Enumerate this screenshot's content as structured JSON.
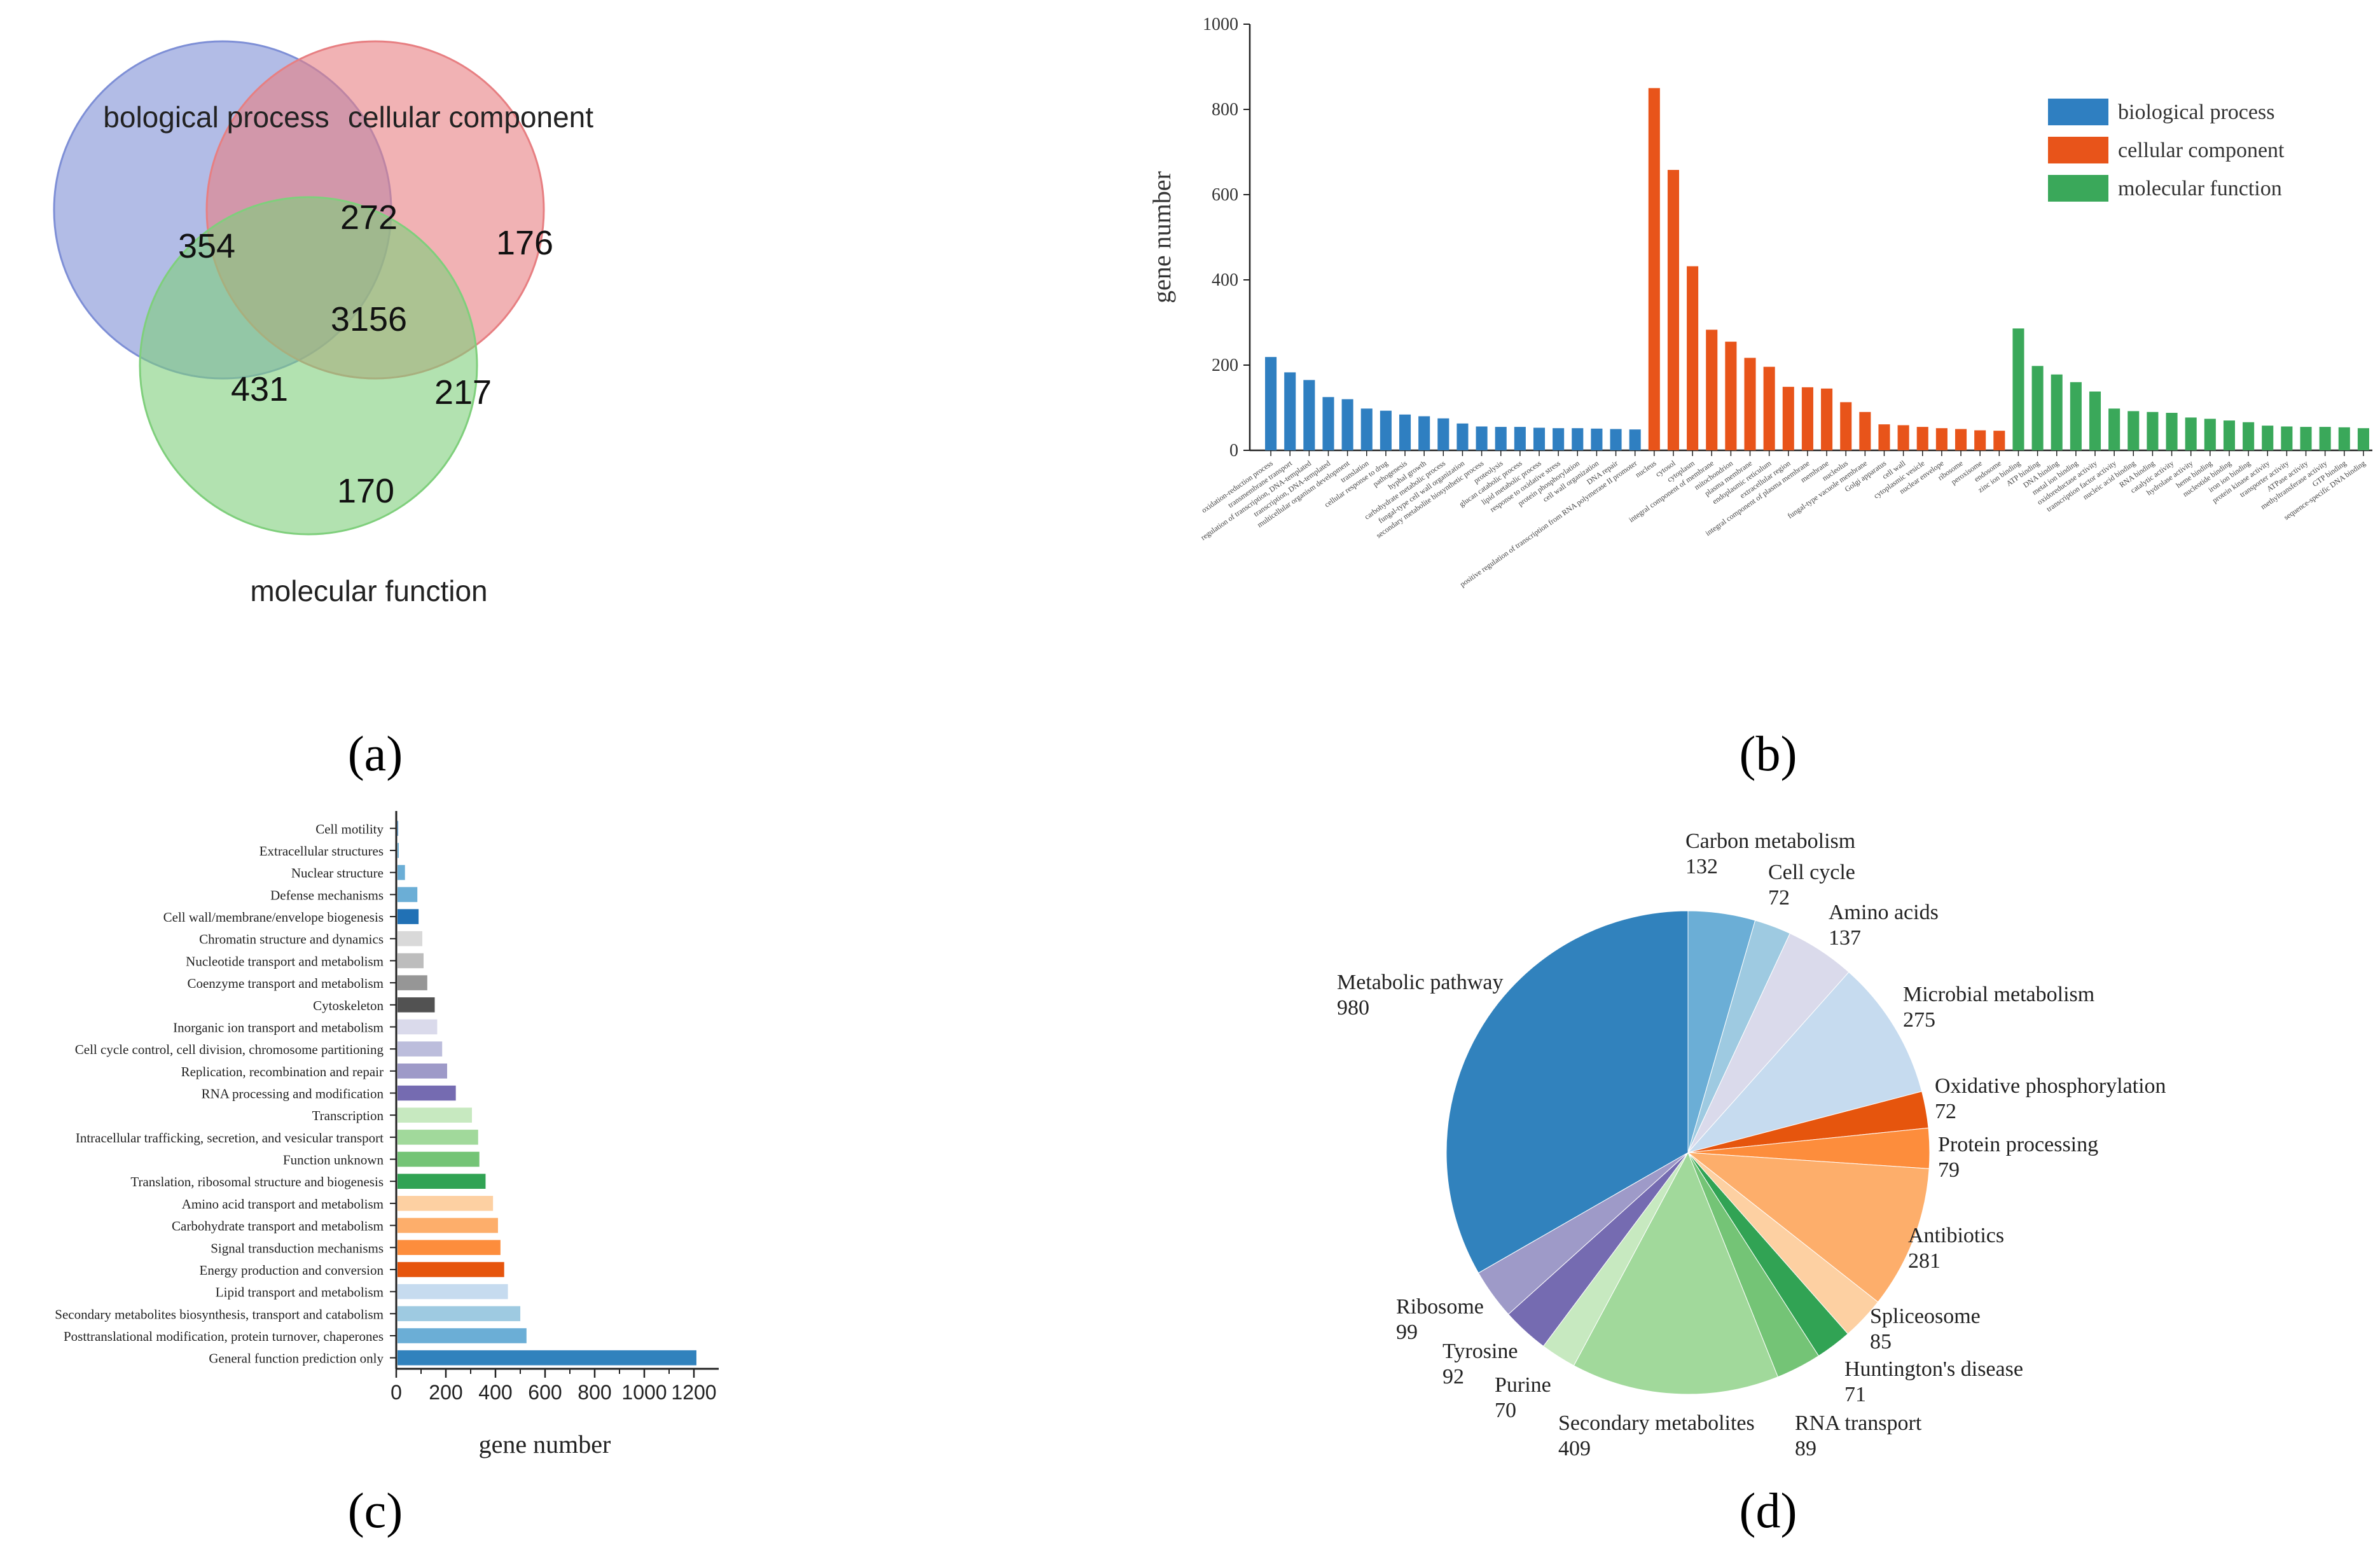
{
  "panel_labels": [
    "(a)",
    "(b)",
    "(c)",
    "(d)"
  ],
  "chart_data": [
    {
      "type": "venn",
      "id": "a",
      "sets": [
        "bological process",
        "cellular component",
        "molecular function"
      ],
      "colors": [
        "#7e8fd6",
        "#e77f82",
        "#7fcf7c"
      ],
      "regions": {
        "bp_only": 354,
        "cc_only": 176,
        "mf_only": 170,
        "bp_cc": 272,
        "bp_mf": 431,
        "cc_mf": 217,
        "all": 3156
      }
    },
    {
      "type": "bar",
      "id": "b",
      "ylabel": "gene number",
      "ylim": [
        0,
        1000
      ],
      "yticks": [
        "0",
        "200",
        "400",
        "600",
        "800",
        "1000"
      ],
      "legend_position": "top-right",
      "series": [
        {
          "name": "biological process",
          "color": "#2f7fc1",
          "categories": [
            "oxidation-reduction process",
            "transmembrane transport",
            "regulation of transcription, DNA-templated",
            "transcription, DNA-templated",
            "multicellular organism development",
            "translation",
            "cellular response to drug",
            "pathogenesis",
            "hyphal growth",
            "carbohydrate metabolic process",
            "fungal-type cell wall organization",
            "secondary metabolite biosynthetic process",
            "proteolysis",
            "glucan catabolic process",
            "lipid metabolic process",
            "response to oxidative stress",
            "protein phosphorylation",
            "cell wall organization",
            "DNA repair",
            "positive regulation of transcription from RNA polymerase II promoter"
          ],
          "values": [
            219,
            183,
            165,
            125,
            120,
            98,
            93,
            84,
            80,
            75,
            63,
            56,
            55,
            55,
            53,
            52,
            52,
            51,
            50,
            49
          ]
        },
        {
          "name": "cellular component",
          "color": "#e8541a",
          "categories": [
            "nucleus",
            "cytosol",
            "cytoplasm",
            "integral component of membrane",
            "mitochondrion",
            "plasma membrane",
            "endoplasmic reticulum",
            "extracellular region",
            "integral component of plasma membrane",
            "membrane",
            "nucleolus",
            "fungal-type vacuole membrane",
            "Golgi apparatus",
            "cell wall",
            "cytoplasmic vesicle",
            "nuclear envelope",
            "ribosome",
            "peroxisome",
            "endosome"
          ],
          "values": [
            850,
            658,
            432,
            283,
            255,
            217,
            196,
            149,
            148,
            145,
            113,
            90,
            61,
            59,
            55,
            52,
            50,
            47,
            46
          ]
        },
        {
          "name": "molecular function",
          "color": "#3aa85a",
          "categories": [
            "zinc ion binding",
            "ATP binding",
            "DNA binding",
            "metal ion binding",
            "oxidoreductase activity",
            "transcription factor activity",
            "nucleic acid binding",
            "RNA binding",
            "catalytic activity",
            "hydrolase activity",
            "heme binding",
            "nucleotide binding",
            "iron ion binding",
            "protein kinase activity",
            "transporter activity",
            "ATPase activity",
            "methyltransferase activity",
            "GTP binding",
            "sequence-specific DNA binding"
          ],
          "values": [
            286,
            198,
            178,
            160,
            138,
            98,
            92,
            90,
            88,
            77,
            74,
            70,
            66,
            58,
            56,
            55,
            55,
            54,
            52
          ]
        }
      ]
    },
    {
      "type": "bar",
      "orientation": "horizontal",
      "id": "c",
      "xlabel": "gene number",
      "xlim": [
        0,
        1300
      ],
      "xticks": [
        "0",
        "200",
        "400",
        "600",
        "800",
        "1000",
        "1200"
      ],
      "categories": [
        "Cell motility",
        "Extracellular structures",
        "Nuclear structure",
        "Defense mechanisms",
        "Cell wall/membrane/envelope biogenesis",
        "Chromatin structure and dynamics",
        "Nucleotide transport and metabolism",
        "Coenzyme transport and metabolism",
        "Cytoskeleton",
        "Inorganic ion transport and metabolism",
        "Cell cycle control, cell division, chromosome partitioning",
        "Replication, recombination and repair",
        "RNA processing and modification",
        "Transcription",
        "Intracellular trafficking, secretion, and vesicular transport",
        "Function unknown",
        "Translation, ribosomal structure and biogenesis",
        "Amino acid transport and metabolism",
        "Carbohydrate transport and metabolism",
        "Signal transduction mechanisms",
        "Energy production and conversion",
        "Lipid transport and metabolism",
        "Secondary metabolites biosynthesis, transport and catabolism",
        "Posttranslational modification, protein turnover, chaperones",
        "General function prediction only"
      ],
      "values": [
        2,
        5,
        30,
        80,
        85,
        100,
        105,
        120,
        150,
        160,
        180,
        200,
        235,
        300,
        325,
        330,
        355,
        385,
        405,
        415,
        430,
        445,
        495,
        520,
        1205
      ],
      "colors": [
        "#2f7fc1",
        "#6baed6",
        "#6baed6",
        "#6baed6",
        "#2171b5",
        "#d9d9d9",
        "#bdbdbd",
        "#969696",
        "#525252",
        "#dadaeb",
        "#bcbddc",
        "#9e9ac8",
        "#756bb1",
        "#c7e9c0",
        "#a1d99b",
        "#74c476",
        "#31a354",
        "#fdd0a2",
        "#fdae6b",
        "#fd8d3c",
        "#e6550d",
        "#c6dbef",
        "#9ecae1",
        "#6baed6",
        "#3182bd"
      ]
    },
    {
      "type": "pie",
      "id": "d",
      "slices": [
        {
          "label": "Carbon metabolism",
          "value": 132,
          "color": "#6baed6"
        },
        {
          "label": "Cell cycle",
          "value": 72,
          "color": "#9ecae1"
        },
        {
          "label": "Amino acids",
          "value": 137,
          "color": "#dadaeb"
        },
        {
          "label": "Microbial metabolism",
          "value": 275,
          "color": "#c6dbef"
        },
        {
          "label": "Oxidative phosphorylation",
          "value": 72,
          "color": "#e6550d"
        },
        {
          "label": "Protein processing",
          "value": 79,
          "color": "#fd8d3c"
        },
        {
          "label": "Antibiotics",
          "value": 281,
          "color": "#fdae6b"
        },
        {
          "label": "Spliceosome",
          "value": 85,
          "color": "#fdd0a2"
        },
        {
          "label": "Huntington's disease",
          "value": 71,
          "color": "#31a354"
        },
        {
          "label": "RNA transport",
          "value": 89,
          "color": "#74c476"
        },
        {
          "label": "Secondary metabolites",
          "value": 409,
          "color": "#a1d99b"
        },
        {
          "label": "Purine",
          "value": 70,
          "color": "#c7e9c0"
        },
        {
          "label": "Tyrosine",
          "value": 92,
          "color": "#756bb1"
        },
        {
          "label": "Ribosome",
          "value": 99,
          "color": "#9e9ac8"
        },
        {
          "label": "Metabolic pathway",
          "value": 980,
          "color": "#3182bd"
        }
      ]
    }
  ]
}
